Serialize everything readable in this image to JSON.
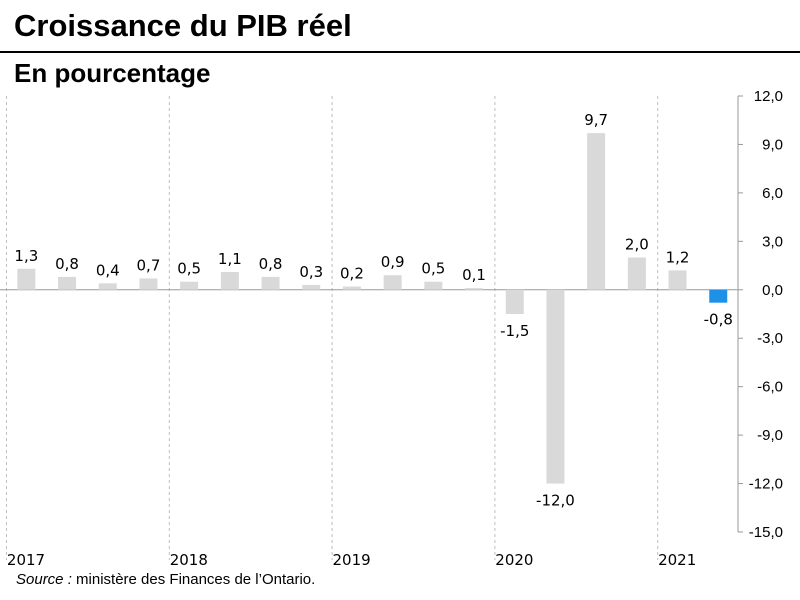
{
  "title": "Croissance du PIB réel",
  "subtitle": "En pourcentage",
  "source": {
    "label": "Source :",
    "text": " ministère des Finances de l’Ontario."
  },
  "colors": {
    "bar": "#d9d9d9",
    "highlight": "#1e90e8",
    "gridline": "#bfbfbf",
    "axis": "#999999"
  },
  "chart_data": {
    "type": "bar",
    "title": "Croissance du PIB réel",
    "subtitle": "En pourcentage",
    "categories": [
      "2017 T1",
      "2017 T2",
      "2017 T3",
      "2017 T4",
      "2018 T1",
      "2018 T2",
      "2018 T3",
      "2018 T4",
      "2019 T1",
      "2019 T2",
      "2019 T3",
      "2019 T4",
      "2020 T1",
      "2020 T2",
      "2020 T3",
      "2020 T4",
      "2021 T1",
      "2021 T2"
    ],
    "values": [
      1.3,
      0.8,
      0.4,
      0.7,
      0.5,
      1.1,
      0.8,
      0.3,
      0.2,
      0.9,
      0.5,
      0.1,
      -1.5,
      -12.0,
      9.7,
      2.0,
      1.2,
      -0.8
    ],
    "value_labels": [
      "1,3",
      "0,8",
      "0,4",
      "0,7",
      "0,5",
      "1,1",
      "0,8",
      "0,3",
      "0,2",
      "0,9",
      "0,5",
      "0,1",
      "-1,5",
      "-12,0",
      "9,7",
      "2,0",
      "1,2",
      "-0,8"
    ],
    "highlight_index": 17,
    "year_labels": [
      "2017",
      "2018",
      "2019",
      "2020",
      "2021"
    ],
    "ylim": [
      -15,
      12
    ],
    "y_ticks": [
      12,
      9,
      6,
      3,
      0,
      -3,
      -6,
      -9,
      -12,
      -15
    ],
    "y_tick_labels": [
      "12,0",
      "9,0",
      "6,0",
      "3,0",
      "0,0",
      "-3,0",
      "-6,0",
      "-9,0",
      "-12,0",
      "-15,0"
    ],
    "y_axis_side": "right",
    "grid": "vertical dashed year separators",
    "legend": "none"
  }
}
